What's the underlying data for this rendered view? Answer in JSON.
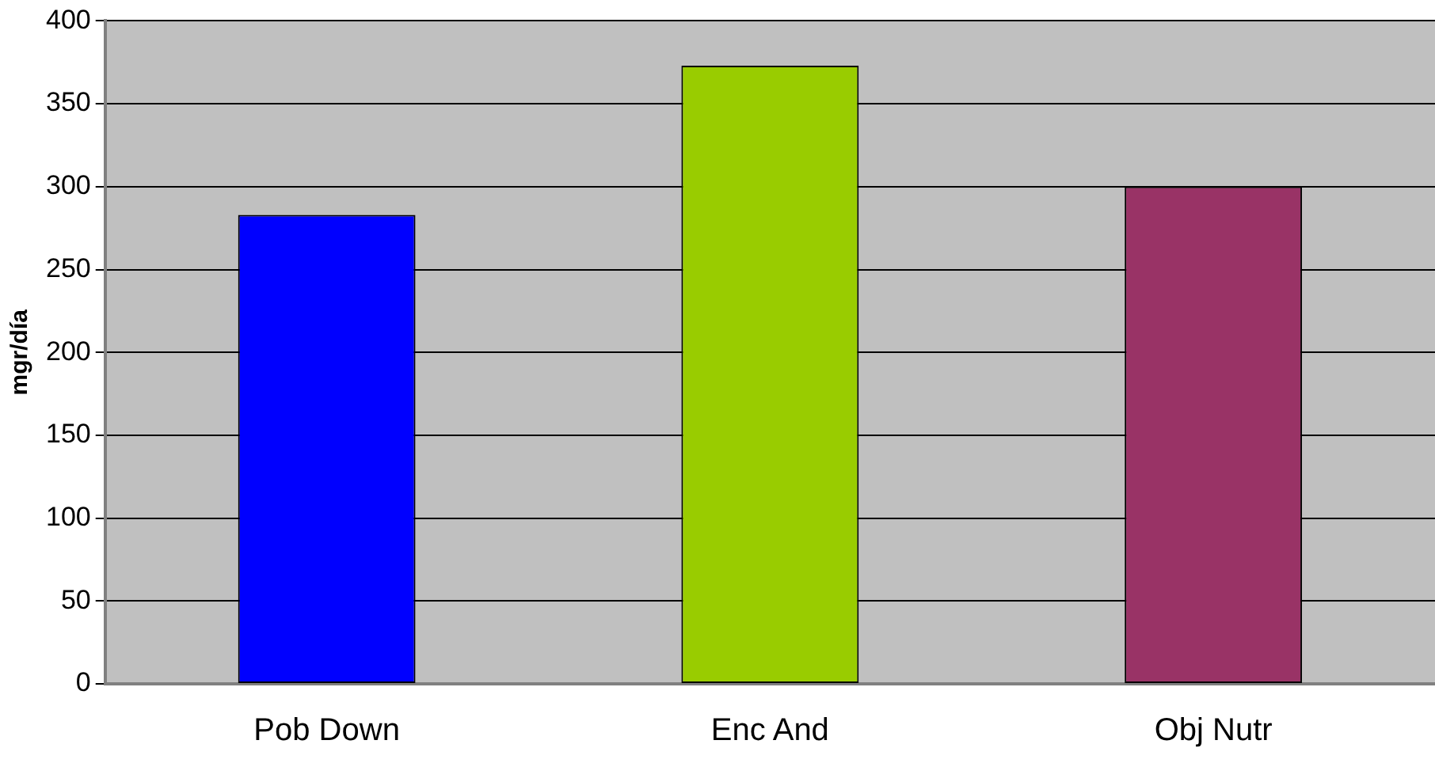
{
  "chart_data": {
    "type": "bar",
    "ylabel": "mgr/día",
    "categories": [
      "Pob Down",
      "Enc And",
      "Obj Nutr"
    ],
    "values": [
      283,
      373,
      300
    ],
    "colors": [
      "#0000ff",
      "#99cc00",
      "#993366"
    ],
    "ylim": [
      0,
      400
    ],
    "yticks": [
      0,
      50,
      100,
      150,
      200,
      250,
      300,
      350,
      400
    ],
    "grid": "y",
    "legend": false
  }
}
